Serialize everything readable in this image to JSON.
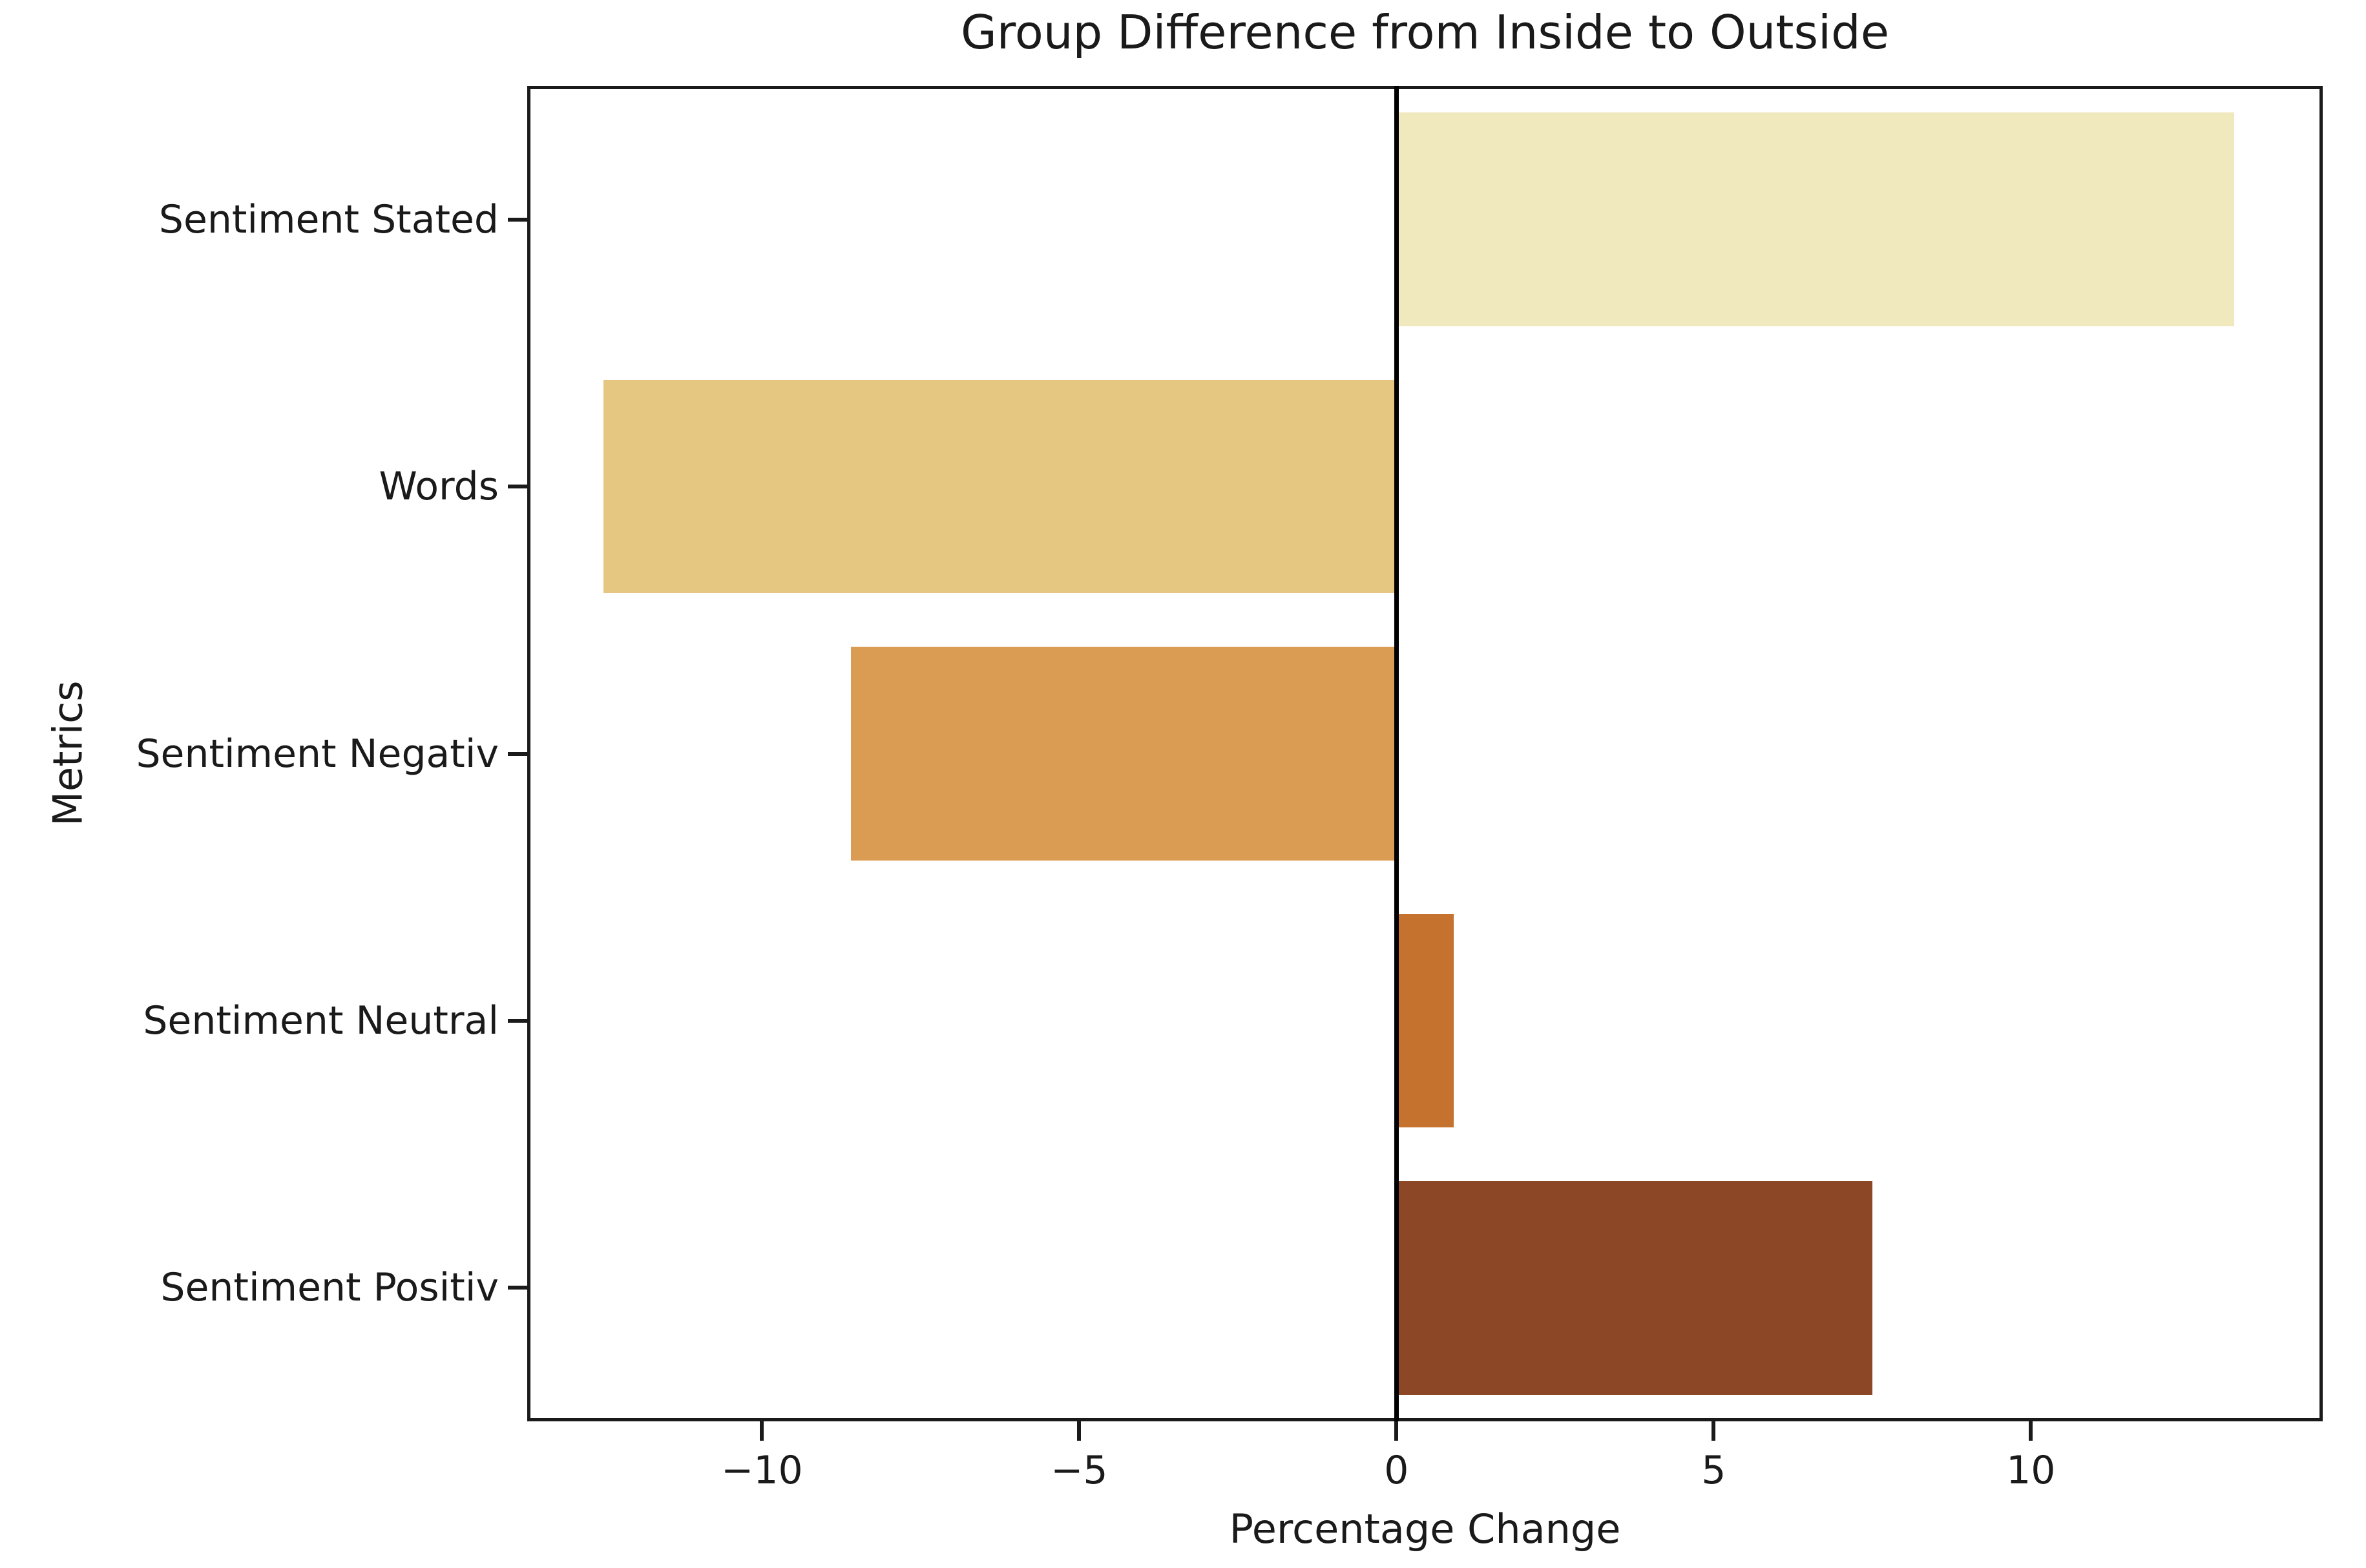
{
  "chart_data": {
    "type": "bar",
    "orientation": "horizontal",
    "title": "Group Difference from Inside to Outside",
    "xlabel": "Percentage Change",
    "ylabel": "Metrics",
    "categories": [
      "Sentiment Stated",
      "Words",
      "Sentiment Negativ",
      "Sentiment Neutral",
      "Sentiment Positiv"
    ],
    "values": [
      13.2,
      -12.5,
      -8.6,
      0.9,
      7.5
    ],
    "bar_colors": [
      "#f0e9be",
      "#e5c782",
      "#d99c52",
      "#c5722e",
      "#8c4726"
    ],
    "x_ticks": [
      -10,
      -5,
      0,
      5,
      10
    ],
    "x_tick_labels": [
      "−10",
      "−5",
      "0",
      "5",
      "10"
    ],
    "xlim": [
      -13.7,
      14.6
    ],
    "zero_line": true,
    "grid": false,
    "legend": false,
    "bar_fraction_of_slot": 0.8
  },
  "colors": {
    "axis": "#1a1a1a",
    "zero_line": "#000000",
    "background": "#ffffff"
  }
}
